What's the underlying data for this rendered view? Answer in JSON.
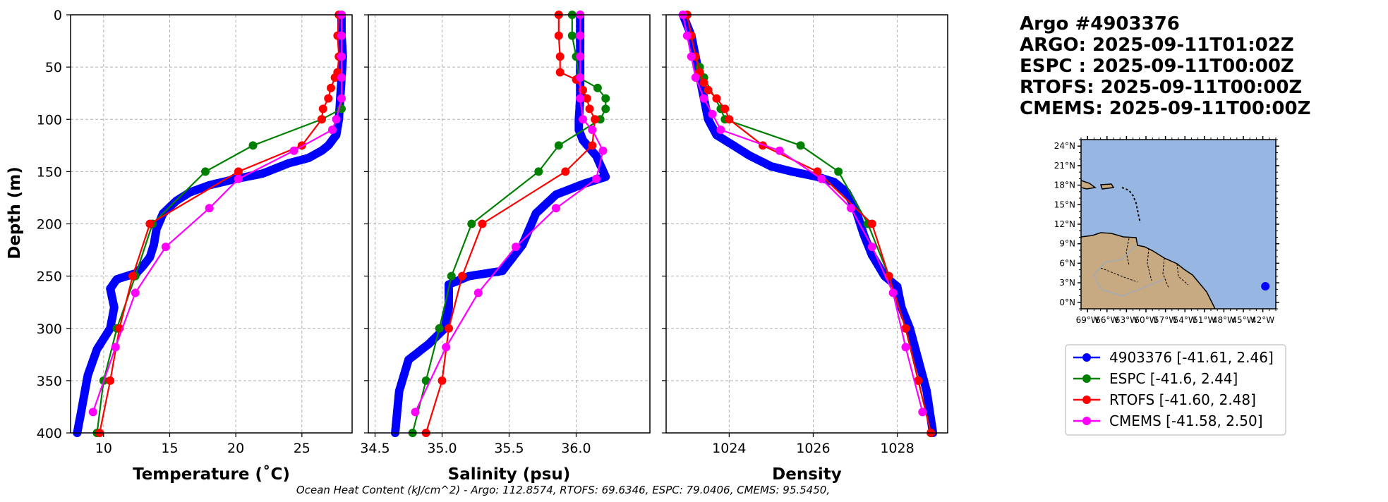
{
  "y_axis_label": "Depth (m)",
  "caption": "Ocean Heat Content (kJ/cm^2) - Argo: 112.8574,  RTOFS: 69.6346,  ESPC: 79.0406,  CMEMS: 95.5450,",
  "info_lines": [
    "Argo #4903376",
    "ARGO: 2025-09-11T01:02Z",
    "ESPC : 2025-09-11T00:00Z",
    "RTOFS: 2025-09-11T00:00Z",
    "CMEMS: 2025-09-11T00:00Z"
  ],
  "colors": {
    "argo": "#0000ff",
    "espc": "#008000",
    "rtofs": "#ff0000",
    "cmems": "#ff00ff",
    "ocean": "#97b6e1",
    "land": "#c8aa82"
  },
  "legend": [
    {
      "label": "4903376 [-41.61, 2.46]",
      "color": "#0000ff"
    },
    {
      "label": "ESPC [-41.6, 2.44]",
      "color": "#008000"
    },
    {
      "label": "RTOFS [-41.60, 2.48]",
      "color": "#ff0000"
    },
    {
      "label": "CMEMS [-41.58, 2.50]",
      "color": "#ff00ff"
    }
  ],
  "map": {
    "lat_ticks": [
      "24°N",
      "21°N",
      "18°N",
      "15°N",
      "12°N",
      "9°N",
      "6°N",
      "3°N",
      "0°N"
    ],
    "lat_values": [
      24,
      21,
      18,
      15,
      12,
      9,
      6,
      3,
      0
    ],
    "lon_ticks": [
      "69°W",
      "66°W",
      "63°W",
      "60°W",
      "57°W",
      "54°W",
      "51°W",
      "48°W",
      "45°W",
      "42°W"
    ],
    "lon_values": [
      -69,
      -66,
      -63,
      -60,
      -57,
      -54,
      -51,
      -48,
      -45,
      -42
    ],
    "lon_range": [
      -70,
      -40
    ],
    "lat_range": [
      -1,
      25
    ],
    "float_position": {
      "lon": -41.61,
      "lat": 2.46
    }
  },
  "chart_data": [
    {
      "type": "line",
      "xlabel": "Temperature (˚C)",
      "ylabel": "Depth (m)",
      "xlim": [
        7.5,
        28.8
      ],
      "ylim": [
        400,
        0
      ],
      "xticks": [
        10,
        15,
        20,
        25
      ],
      "yticks": [
        0,
        50,
        100,
        150,
        200,
        250,
        300,
        350,
        400
      ],
      "series": [
        {
          "name": "4903376",
          "color": "#0000ff",
          "dense": true,
          "points": [
            [
              28.0,
              0
            ],
            [
              28.0,
              20
            ],
            [
              28.1,
              40
            ],
            [
              28.0,
              60
            ],
            [
              27.9,
              80
            ],
            [
              27.8,
              100
            ],
            [
              27.6,
              115
            ],
            [
              27.0,
              125
            ],
            [
              26.5,
              130
            ],
            [
              25.5,
              137
            ],
            [
              24.0,
              142
            ],
            [
              22.0,
              152
            ],
            [
              20.0,
              157
            ],
            [
              18.0,
              163
            ],
            [
              16.5,
              170
            ],
            [
              15.5,
              178
            ],
            [
              14.5,
              190
            ],
            [
              14.0,
              205
            ],
            [
              13.8,
              220
            ],
            [
              13.5,
              232
            ],
            [
              13.0,
              240
            ],
            [
              12.5,
              247
            ],
            [
              11.0,
              253
            ],
            [
              10.5,
              262
            ],
            [
              10.8,
              280
            ],
            [
              10.5,
              300
            ],
            [
              9.5,
              320
            ],
            [
              8.8,
              345
            ],
            [
              8.3,
              380
            ],
            [
              8.0,
              400
            ]
          ]
        },
        {
          "name": "ESPC",
          "color": "#008000",
          "points": [
            [
              28.0,
              0
            ],
            [
              28.0,
              20
            ],
            [
              28.0,
              40
            ],
            [
              28.0,
              60
            ],
            [
              28.0,
              90
            ],
            [
              26.5,
              100
            ],
            [
              21.3,
              125
            ],
            [
              17.7,
              150
            ],
            [
              13.7,
              200
            ],
            [
              12.4,
              250
            ],
            [
              11.0,
              300
            ],
            [
              10.0,
              350
            ],
            [
              9.5,
              400
            ]
          ]
        },
        {
          "name": "RTOFS",
          "color": "#ff0000",
          "points": [
            [
              27.8,
              0
            ],
            [
              27.7,
              20
            ],
            [
              27.8,
              40
            ],
            [
              27.7,
              55
            ],
            [
              27.5,
              60
            ],
            [
              27.2,
              70
            ],
            [
              27.0,
              80
            ],
            [
              26.6,
              90
            ],
            [
              26.5,
              100
            ],
            [
              25.0,
              125
            ],
            [
              20.2,
              150
            ],
            [
              13.5,
              200
            ],
            [
              12.2,
              250
            ],
            [
              11.2,
              300
            ],
            [
              10.5,
              350
            ],
            [
              9.7,
              400
            ]
          ]
        },
        {
          "name": "CMEMS",
          "color": "#ff00ff",
          "points": [
            [
              28.0,
              0
            ],
            [
              28.0,
              20
            ],
            [
              28.0,
              40
            ],
            [
              28.0,
              60
            ],
            [
              28.0,
              80
            ],
            [
              27.6,
              100
            ],
            [
              27.3,
              110
            ],
            [
              24.4,
              130
            ],
            [
              20.2,
              157
            ],
            [
              18.0,
              185
            ],
            [
              14.7,
              222
            ],
            [
              12.4,
              266
            ],
            [
              10.9,
              318
            ],
            [
              9.2,
              380
            ]
          ]
        }
      ]
    },
    {
      "type": "line",
      "xlabel": "Salinity (psu)",
      "ylabel": "Depth (m)",
      "xlim": [
        34.45,
        36.55
      ],
      "ylim": [
        400,
        0
      ],
      "xticks": [
        34.5,
        35.0,
        35.5,
        36.0
      ],
      "yticks": [
        0,
        50,
        100,
        150,
        200,
        250,
        300,
        350,
        400
      ],
      "series": [
        {
          "name": "4903376",
          "color": "#0000ff",
          "dense": true,
          "points": [
            [
              36.03,
              0
            ],
            [
              36.03,
              30
            ],
            [
              36.03,
              60
            ],
            [
              36.03,
              80
            ],
            [
              36.02,
              100
            ],
            [
              36.02,
              110
            ],
            [
              36.05,
              120
            ],
            [
              36.15,
              135
            ],
            [
              36.22,
              155
            ],
            [
              36.05,
              162
            ],
            [
              35.85,
              172
            ],
            [
              35.7,
              190
            ],
            [
              35.6,
              220
            ],
            [
              35.45,
              245
            ],
            [
              35.2,
              250
            ],
            [
              35.05,
              258
            ],
            [
              35.05,
              280
            ],
            [
              35.02,
              300
            ],
            [
              34.9,
              315
            ],
            [
              34.75,
              330
            ],
            [
              34.68,
              360
            ],
            [
              34.65,
              400
            ]
          ]
        },
        {
          "name": "ESPC",
          "color": "#008000",
          "points": [
            [
              35.97,
              0
            ],
            [
              35.97,
              20
            ],
            [
              36.0,
              40
            ],
            [
              36.02,
              60
            ],
            [
              36.16,
              70
            ],
            [
              36.22,
              80
            ],
            [
              36.22,
              90
            ],
            [
              36.18,
              100
            ],
            [
              35.87,
              125
            ],
            [
              35.72,
              150
            ],
            [
              35.22,
              200
            ],
            [
              35.07,
              250
            ],
            [
              34.98,
              300
            ],
            [
              34.88,
              350
            ],
            [
              34.78,
              400
            ]
          ]
        },
        {
          "name": "RTOFS",
          "color": "#ff0000",
          "points": [
            [
              35.87,
              0
            ],
            [
              35.87,
              20
            ],
            [
              35.88,
              40
            ],
            [
              35.88,
              55
            ],
            [
              36.0,
              62
            ],
            [
              36.05,
              72
            ],
            [
              36.08,
              80
            ],
            [
              36.1,
              90
            ],
            [
              36.14,
              100
            ],
            [
              36.12,
              125
            ],
            [
              35.92,
              150
            ],
            [
              35.3,
              200
            ],
            [
              35.15,
              250
            ],
            [
              35.05,
              300
            ],
            [
              35.0,
              350
            ],
            [
              34.88,
              400
            ]
          ]
        },
        {
          "name": "CMEMS",
          "color": "#ff00ff",
          "points": [
            [
              36.03,
              0
            ],
            [
              36.03,
              20
            ],
            [
              36.03,
              40
            ],
            [
              36.03,
              60
            ],
            [
              36.03,
              80
            ],
            [
              36.05,
              100
            ],
            [
              36.12,
              110
            ],
            [
              36.2,
              130
            ],
            [
              36.15,
              157
            ],
            [
              35.85,
              185
            ],
            [
              35.55,
              222
            ],
            [
              35.27,
              266
            ],
            [
              35.03,
              318
            ],
            [
              34.8,
              380
            ]
          ]
        }
      ]
    },
    {
      "type": "line",
      "xlabel": "Density",
      "ylabel": "Depth (m)",
      "xlim": [
        1022.5,
        1029.2
      ],
      "ylim": [
        400,
        0
      ],
      "xticks": [
        1024,
        1026,
        1028
      ],
      "yticks": [
        0,
        50,
        100,
        150,
        200,
        250,
        300,
        350,
        400
      ],
      "series": [
        {
          "name": "4903376",
          "color": "#0000ff",
          "dense": true,
          "points": [
            [
              1022.9,
              0
            ],
            [
              1023.1,
              20
            ],
            [
              1023.2,
              40
            ],
            [
              1023.3,
              60
            ],
            [
              1023.4,
              80
            ],
            [
              1023.5,
              100
            ],
            [
              1023.7,
              115
            ],
            [
              1024.1,
              125
            ],
            [
              1024.5,
              135
            ],
            [
              1025.0,
              145
            ],
            [
              1025.5,
              150
            ],
            [
              1026.1,
              155
            ],
            [
              1026.5,
              160
            ],
            [
              1026.8,
              170
            ],
            [
              1027.0,
              185
            ],
            [
              1027.2,
              210
            ],
            [
              1027.4,
              230
            ],
            [
              1027.7,
              250
            ],
            [
              1028.0,
              260
            ],
            [
              1028.1,
              280
            ],
            [
              1028.3,
              300
            ],
            [
              1028.5,
              330
            ],
            [
              1028.7,
              360
            ],
            [
              1028.85,
              400
            ]
          ]
        },
        {
          "name": "ESPC",
          "color": "#008000",
          "points": [
            [
              1023.0,
              0
            ],
            [
              1023.1,
              20
            ],
            [
              1023.2,
              40
            ],
            [
              1023.3,
              50
            ],
            [
              1023.4,
              60
            ],
            [
              1023.8,
              90
            ],
            [
              1023.9,
              100
            ],
            [
              1025.7,
              125
            ],
            [
              1026.6,
              150
            ],
            [
              1027.3,
              200
            ],
            [
              1027.8,
              250
            ],
            [
              1028.2,
              300
            ],
            [
              1028.5,
              350
            ],
            [
              1028.8,
              400
            ]
          ]
        },
        {
          "name": "RTOFS",
          "color": "#ff0000",
          "points": [
            [
              1023.0,
              0
            ],
            [
              1023.1,
              20
            ],
            [
              1023.2,
              40
            ],
            [
              1023.3,
              55
            ],
            [
              1023.4,
              65
            ],
            [
              1023.5,
              72
            ],
            [
              1023.7,
              80
            ],
            [
              1023.9,
              90
            ],
            [
              1024.0,
              100
            ],
            [
              1024.8,
              125
            ],
            [
              1026.1,
              150
            ],
            [
              1027.4,
              200
            ],
            [
              1027.8,
              250
            ],
            [
              1028.2,
              300
            ],
            [
              1028.5,
              350
            ],
            [
              1028.8,
              400
            ]
          ]
        },
        {
          "name": "CMEMS",
          "color": "#ff00ff",
          "points": [
            [
              1022.9,
              0
            ],
            [
              1023.0,
              20
            ],
            [
              1023.1,
              40
            ],
            [
              1023.2,
              60
            ],
            [
              1023.4,
              80
            ],
            [
              1023.6,
              95
            ],
            [
              1023.8,
              110
            ],
            [
              1025.2,
              130
            ],
            [
              1026.2,
              157
            ],
            [
              1026.9,
              185
            ],
            [
              1027.4,
              222
            ],
            [
              1027.9,
              266
            ],
            [
              1028.2,
              318
            ],
            [
              1028.6,
              380
            ]
          ]
        }
      ]
    }
  ]
}
